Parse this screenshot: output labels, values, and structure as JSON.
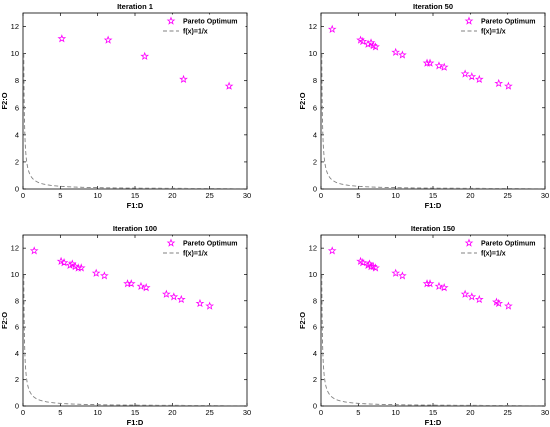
{
  "chart_data": [
    {
      "type": "scatter",
      "title": "Iteration 1",
      "xlabel": "F1:D",
      "ylabel": "F2:O",
      "xlim": [
        0,
        30
      ],
      "ylim": [
        0,
        13
      ],
      "xticks": [
        "0",
        "5",
        "10",
        "15",
        "20",
        "25",
        "30"
      ],
      "yticks": [
        "0",
        "2",
        "4",
        "6",
        "8",
        "10",
        "12"
      ],
      "legend_position": "top-right",
      "grid": false,
      "series": [
        {
          "name": "Pareto Optimum",
          "marker": "star",
          "color": "#ff00ff",
          "x": [
            5.2,
            11.4,
            16.3,
            21.5,
            27.6
          ],
          "y": [
            11.1,
            11.0,
            9.8,
            8.1,
            7.6
          ]
        },
        {
          "name": "f(x)=1/x",
          "style": "dashed-line",
          "color": "#808080",
          "function": "1/x",
          "x_range": [
            0.1,
            30
          ]
        }
      ]
    },
    {
      "type": "scatter",
      "title": "Iteration 50",
      "xlabel": "F1:D",
      "ylabel": "F2:O",
      "xlim": [
        0,
        30
      ],
      "ylim": [
        0,
        13
      ],
      "xticks": [
        "0",
        "5",
        "10",
        "15",
        "20",
        "25",
        "30"
      ],
      "yticks": [
        "0",
        "2",
        "4",
        "6",
        "8",
        "10",
        "12"
      ],
      "legend_position": "top-right",
      "grid": false,
      "series": [
        {
          "name": "Pareto Optimum",
          "marker": "star",
          "color": "#ff00ff",
          "x": [
            1.5,
            5.3,
            5.6,
            6.3,
            6.7,
            7.0,
            7.3,
            10.0,
            10.9,
            14.2,
            14.6,
            15.8,
            16.5,
            19.3,
            20.2,
            21.2,
            23.8,
            25.1
          ],
          "y": [
            11.8,
            11.0,
            10.9,
            10.7,
            10.8,
            10.6,
            10.5,
            10.1,
            9.9,
            9.3,
            9.3,
            9.1,
            9.0,
            8.5,
            8.3,
            8.1,
            7.8,
            7.6
          ]
        },
        {
          "name": "f(x)=1/x",
          "style": "dashed-line",
          "color": "#808080",
          "function": "1/x",
          "x_range": [
            0.1,
            30
          ]
        }
      ]
    },
    {
      "type": "scatter",
      "title": "Iteration 100",
      "xlabel": "F1:D",
      "ylabel": "F2:O",
      "xlim": [
        0,
        30
      ],
      "ylim": [
        0,
        13
      ],
      "xticks": [
        "0",
        "5",
        "10",
        "15",
        "20",
        "25",
        "30"
      ],
      "yticks": [
        "0",
        "2",
        "4",
        "6",
        "8",
        "10",
        "12"
      ],
      "legend_position": "top-right",
      "grid": false,
      "series": [
        {
          "name": "Pareto Optimum",
          "marker": "star",
          "color": "#ff00ff",
          "x": [
            1.5,
            5.1,
            5.5,
            6.3,
            6.6,
            7.0,
            7.4,
            7.8,
            9.8,
            10.9,
            14.0,
            14.5,
            15.8,
            16.5,
            19.2,
            20.2,
            21.2,
            23.7,
            25.0
          ],
          "y": [
            11.8,
            11.0,
            10.9,
            10.7,
            10.8,
            10.6,
            10.5,
            10.5,
            10.1,
            9.9,
            9.3,
            9.3,
            9.1,
            9.0,
            8.5,
            8.3,
            8.1,
            7.8,
            7.6
          ]
        },
        {
          "name": "f(x)=1/x",
          "style": "dashed-line",
          "color": "#808080",
          "function": "1/x",
          "x_range": [
            0.1,
            30
          ]
        }
      ]
    },
    {
      "type": "scatter",
      "title": "Iteration 150",
      "xlabel": "F1:D",
      "ylabel": "F2:O",
      "xlim": [
        0,
        30
      ],
      "ylim": [
        0,
        13
      ],
      "xticks": [
        "0",
        "5",
        "10",
        "15",
        "20",
        "25",
        "30"
      ],
      "yticks": [
        "0",
        "2",
        "4",
        "6",
        "8",
        "10",
        "12"
      ],
      "legend_position": "top-right",
      "grid": false,
      "series": [
        {
          "name": "Pareto Optimum",
          "marker": "star",
          "color": "#ff00ff",
          "x": [
            1.5,
            5.3,
            5.6,
            6.3,
            6.5,
            6.7,
            7.0,
            7.3,
            10.0,
            10.9,
            14.2,
            14.6,
            15.8,
            16.5,
            19.3,
            20.2,
            21.2,
            23.5,
            23.8,
            25.1
          ],
          "y": [
            11.8,
            11.0,
            10.9,
            10.7,
            10.8,
            10.6,
            10.6,
            10.5,
            10.1,
            9.9,
            9.3,
            9.3,
            9.1,
            9.0,
            8.5,
            8.3,
            8.1,
            7.9,
            7.8,
            7.6
          ]
        },
        {
          "name": "f(x)=1/x",
          "style": "dashed-line",
          "color": "#808080",
          "function": "1/x",
          "x_range": [
            0.1,
            30
          ]
        }
      ]
    }
  ]
}
